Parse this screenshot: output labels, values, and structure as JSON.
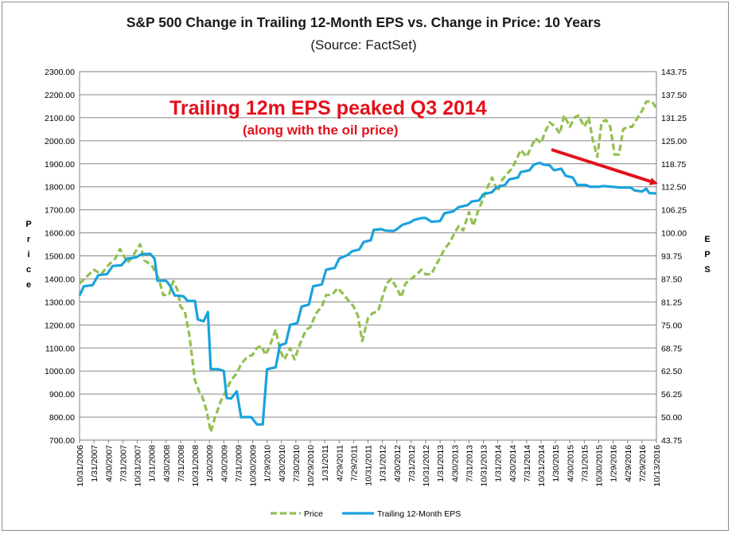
{
  "chart_data": {
    "type": "line",
    "title": "S&P 500 Change in Trailing 12-Month EPS vs. Change in Price: 10 Years",
    "subtitle": "(Source: FactSet)",
    "ylabel_left": "Price",
    "ylabel_right": "EPS",
    "ylim_left": [
      700,
      2300
    ],
    "ylim_right": [
      43.75,
      143.75
    ],
    "yticks_left": [
      "2300.00",
      "2200.00",
      "2100.00",
      "2000.00",
      "1900.00",
      "1800.00",
      "1700.00",
      "1600.00",
      "1500.00",
      "1400.00",
      "1300.00",
      "1200.00",
      "1100.00",
      "1000.00",
      "900.00",
      "800.00",
      "700.00"
    ],
    "yticks_right": [
      "143.75",
      "137.50",
      "131.25",
      "125.00",
      "118.75",
      "112.50",
      "106.25",
      "100.00",
      "93.75",
      "87.50",
      "81.25",
      "75.00",
      "68.75",
      "62.50",
      "56.25",
      "50.00",
      "43.75"
    ],
    "xticks": [
      "10/31/2006",
      "1/31/2007",
      "4/30/2007",
      "7/31/2007",
      "10/31/2007",
      "1/31/2008",
      "4/30/2008",
      "7/31/2008",
      "10/31/2008",
      "1/30/2009",
      "4/30/2009",
      "7/31/2009",
      "10/30/2009",
      "1/29/2010",
      "4/30/2010",
      "7/30/2010",
      "10/29/2010",
      "1/31/2011",
      "4/29/2011",
      "7/29/2011",
      "10/31/2011",
      "1/31/2012",
      "4/30/2012",
      "7/31/2012",
      "10/31/2012",
      "1/31/2013",
      "4/30/2013",
      "7/31/2013",
      "10/31/2013",
      "1/31/2014",
      "4/30/2014",
      "7/31/2014",
      "10/31/2014",
      "1/30/2015",
      "4/30/2015",
      "7/31/2015",
      "10/30/2015",
      "1/29/2016",
      "4/29/2016",
      "7/29/2016",
      "10/13/2016"
    ],
    "grid": true,
    "legend_position": "bottom",
    "series": [
      {
        "name": "Price",
        "axis": "left",
        "color": "#92c050",
        "style": "dashed",
        "points": [
          [
            0,
            1380
          ],
          [
            0.5,
            1410
          ],
          [
            1,
            1440
          ],
          [
            1.5,
            1420
          ],
          [
            2,
            1460
          ],
          [
            2.5,
            1490
          ],
          [
            2.8,
            1530
          ],
          [
            3,
            1510
          ],
          [
            3.3,
            1470
          ],
          [
            3.6,
            1490
          ],
          [
            4,
            1530
          ],
          [
            4.2,
            1550
          ],
          [
            4.5,
            1480
          ],
          [
            5,
            1460
          ],
          [
            5.5,
            1400
          ],
          [
            5.8,
            1330
          ],
          [
            6.2,
            1330
          ],
          [
            6.5,
            1390
          ],
          [
            6.8,
            1350
          ],
          [
            7,
            1280
          ],
          [
            7.3,
            1260
          ],
          [
            7.6,
            1160
          ],
          [
            8,
            960
          ],
          [
            8.3,
            910
          ],
          [
            8.5,
            890
          ],
          [
            8.8,
            830
          ],
          [
            9.1,
            735
          ],
          [
            9.4,
            800
          ],
          [
            9.8,
            870
          ],
          [
            10.2,
            920
          ],
          [
            10.5,
            960
          ],
          [
            10.9,
            990
          ],
          [
            11.2,
            1030
          ],
          [
            11.6,
            1060
          ],
          [
            12,
            1070
          ],
          [
            12.3,
            1100
          ],
          [
            12.6,
            1110
          ],
          [
            12.9,
            1070
          ],
          [
            13.2,
            1110
          ],
          [
            13.6,
            1180
          ],
          [
            13.9,
            1090
          ],
          [
            14.2,
            1050
          ],
          [
            14.6,
            1100
          ],
          [
            14.9,
            1050
          ],
          [
            15.3,
            1120
          ],
          [
            15.7,
            1180
          ],
          [
            16,
            1190
          ],
          [
            16.4,
            1250
          ],
          [
            16.8,
            1280
          ],
          [
            17.1,
            1330
          ],
          [
            17.5,
            1330
          ],
          [
            17.9,
            1360
          ],
          [
            18.2,
            1340
          ],
          [
            18.6,
            1310
          ],
          [
            19,
            1280
          ],
          [
            19.3,
            1240
          ],
          [
            19.6,
            1130
          ],
          [
            20,
            1230
          ],
          [
            20.3,
            1250
          ],
          [
            20.7,
            1260
          ],
          [
            21,
            1320
          ],
          [
            21.3,
            1380
          ],
          [
            21.6,
            1400
          ],
          [
            22,
            1360
          ],
          [
            22.3,
            1320
          ],
          [
            22.6,
            1380
          ],
          [
            23,
            1400
          ],
          [
            23.4,
            1420
          ],
          [
            23.7,
            1440
          ],
          [
            24,
            1420
          ],
          [
            24.4,
            1420
          ],
          [
            24.7,
            1460
          ],
          [
            25,
            1490
          ],
          [
            25.3,
            1530
          ],
          [
            25.7,
            1560
          ],
          [
            26,
            1600
          ],
          [
            26.3,
            1630
          ],
          [
            26.6,
            1610
          ],
          [
            27,
            1690
          ],
          [
            27.3,
            1630
          ],
          [
            27.6,
            1690
          ],
          [
            28,
            1750
          ],
          [
            28.3,
            1800
          ],
          [
            28.6,
            1840
          ],
          [
            29,
            1780
          ],
          [
            29.3,
            1830
          ],
          [
            29.7,
            1860
          ],
          [
            30,
            1880
          ],
          [
            30.3,
            1920
          ],
          [
            30.6,
            1960
          ],
          [
            31,
            1930
          ],
          [
            31.3,
            1970
          ],
          [
            31.6,
            2010
          ],
          [
            32,
            1990
          ],
          [
            32.3,
            2040
          ],
          [
            32.6,
            2080
          ],
          [
            33,
            2060
          ],
          [
            33.3,
            2030
          ],
          [
            33.6,
            2110
          ],
          [
            34,
            2060
          ],
          [
            34.3,
            2100
          ],
          [
            34.6,
            2110
          ],
          [
            35,
            2060
          ],
          [
            35.3,
            2100
          ],
          [
            35.6,
            2000
          ],
          [
            35.9,
            1930
          ],
          [
            36.2,
            2080
          ],
          [
            36.5,
            2090
          ],
          [
            36.8,
            2060
          ],
          [
            37.1,
            1940
          ],
          [
            37.4,
            1940
          ],
          [
            37.7,
            2050
          ],
          [
            38,
            2060
          ],
          [
            38.3,
            2060
          ],
          [
            38.7,
            2100
          ],
          [
            39,
            2130
          ],
          [
            39.3,
            2170
          ],
          [
            39.7,
            2170
          ],
          [
            40,
            2140
          ]
        ]
      },
      {
        "name": "Trailing 12-Month EPS",
        "axis": "right",
        "color": "#1aa2dc",
        "style": "solid",
        "points": [
          [
            0,
            83
          ],
          [
            0.3,
            85.5
          ],
          [
            0.9,
            85.8
          ],
          [
            1.3,
            88.5
          ],
          [
            1.9,
            88.8
          ],
          [
            2.3,
            91
          ],
          [
            2.9,
            91.2
          ],
          [
            3.3,
            93
          ],
          [
            3.9,
            93.3
          ],
          [
            4.3,
            94.2
          ],
          [
            4.9,
            94.3
          ],
          [
            5.2,
            93
          ],
          [
            5.4,
            87
          ],
          [
            6,
            87
          ],
          [
            6.3,
            85.5
          ],
          [
            6.6,
            83
          ],
          [
            7.2,
            82.8
          ],
          [
            7.5,
            81.5
          ],
          [
            8,
            81.5
          ],
          [
            8.2,
            76.5
          ],
          [
            8.6,
            76
          ],
          [
            8.9,
            78.5
          ],
          [
            9.1,
            63
          ],
          [
            9.6,
            63
          ],
          [
            10,
            62.5
          ],
          [
            10.2,
            55.2
          ],
          [
            10.5,
            55
          ],
          [
            10.9,
            57
          ],
          [
            11.2,
            50
          ],
          [
            11.9,
            50
          ],
          [
            12.3,
            48
          ],
          [
            12.7,
            48
          ],
          [
            13,
            63
          ],
          [
            13.6,
            63.5
          ],
          [
            13.9,
            69.5
          ],
          [
            14.3,
            70
          ],
          [
            14.6,
            75
          ],
          [
            15.1,
            75.5
          ],
          [
            15.4,
            80
          ],
          [
            15.9,
            80.5
          ],
          [
            16.2,
            85.5
          ],
          [
            16.8,
            86
          ],
          [
            17.1,
            90
          ],
          [
            17.7,
            90.5
          ],
          [
            18,
            93
          ],
          [
            18.6,
            94
          ],
          [
            18.9,
            95
          ],
          [
            19.4,
            95.5
          ],
          [
            19.7,
            97.5
          ],
          [
            20.2,
            98
          ],
          [
            20.4,
            100.8
          ],
          [
            20.9,
            101
          ],
          [
            21.2,
            100.6
          ],
          [
            21.8,
            100.5
          ],
          [
            22,
            101
          ],
          [
            22.4,
            102.2
          ],
          [
            22.9,
            102.8
          ],
          [
            23.2,
            103.5
          ],
          [
            23.7,
            104
          ],
          [
            24,
            104
          ],
          [
            24.4,
            103
          ],
          [
            25,
            103.2
          ],
          [
            25.3,
            105.3
          ],
          [
            25.9,
            105.8
          ],
          [
            26.3,
            107
          ],
          [
            26.9,
            107.5
          ],
          [
            27.2,
            108.5
          ],
          [
            27.7,
            108.8
          ],
          [
            28,
            110.5
          ],
          [
            28.6,
            111
          ],
          [
            28.9,
            112.3
          ],
          [
            29.5,
            113
          ],
          [
            29.8,
            114.5
          ],
          [
            30.4,
            115
          ],
          [
            30.6,
            116.5
          ],
          [
            31.2,
            117
          ],
          [
            31.5,
            118.5
          ],
          [
            31.9,
            119
          ],
          [
            32.2,
            118.5
          ],
          [
            32.6,
            118.3
          ],
          [
            32.9,
            117
          ],
          [
            33.4,
            117.4
          ],
          [
            33.7,
            115.5
          ],
          [
            34.2,
            115
          ],
          [
            34.5,
            113
          ],
          [
            35.1,
            113
          ],
          [
            35.4,
            112.5
          ],
          [
            36,
            112.5
          ],
          [
            36.3,
            112.7
          ],
          [
            37,
            112.5
          ],
          [
            37.4,
            112.3
          ],
          [
            38.2,
            112.3
          ],
          [
            38.5,
            111.5
          ],
          [
            39,
            111.2
          ],
          [
            39.3,
            112
          ],
          [
            39.5,
            110.8
          ],
          [
            40,
            110.7
          ]
        ]
      }
    ],
    "annotations": [
      {
        "text": "Trailing 12m EPS peaked Q3 2014"
      },
      {
        "text": "(along with the oil price)"
      },
      {
        "type": "arrow",
        "color": "#e3101c"
      }
    ]
  }
}
